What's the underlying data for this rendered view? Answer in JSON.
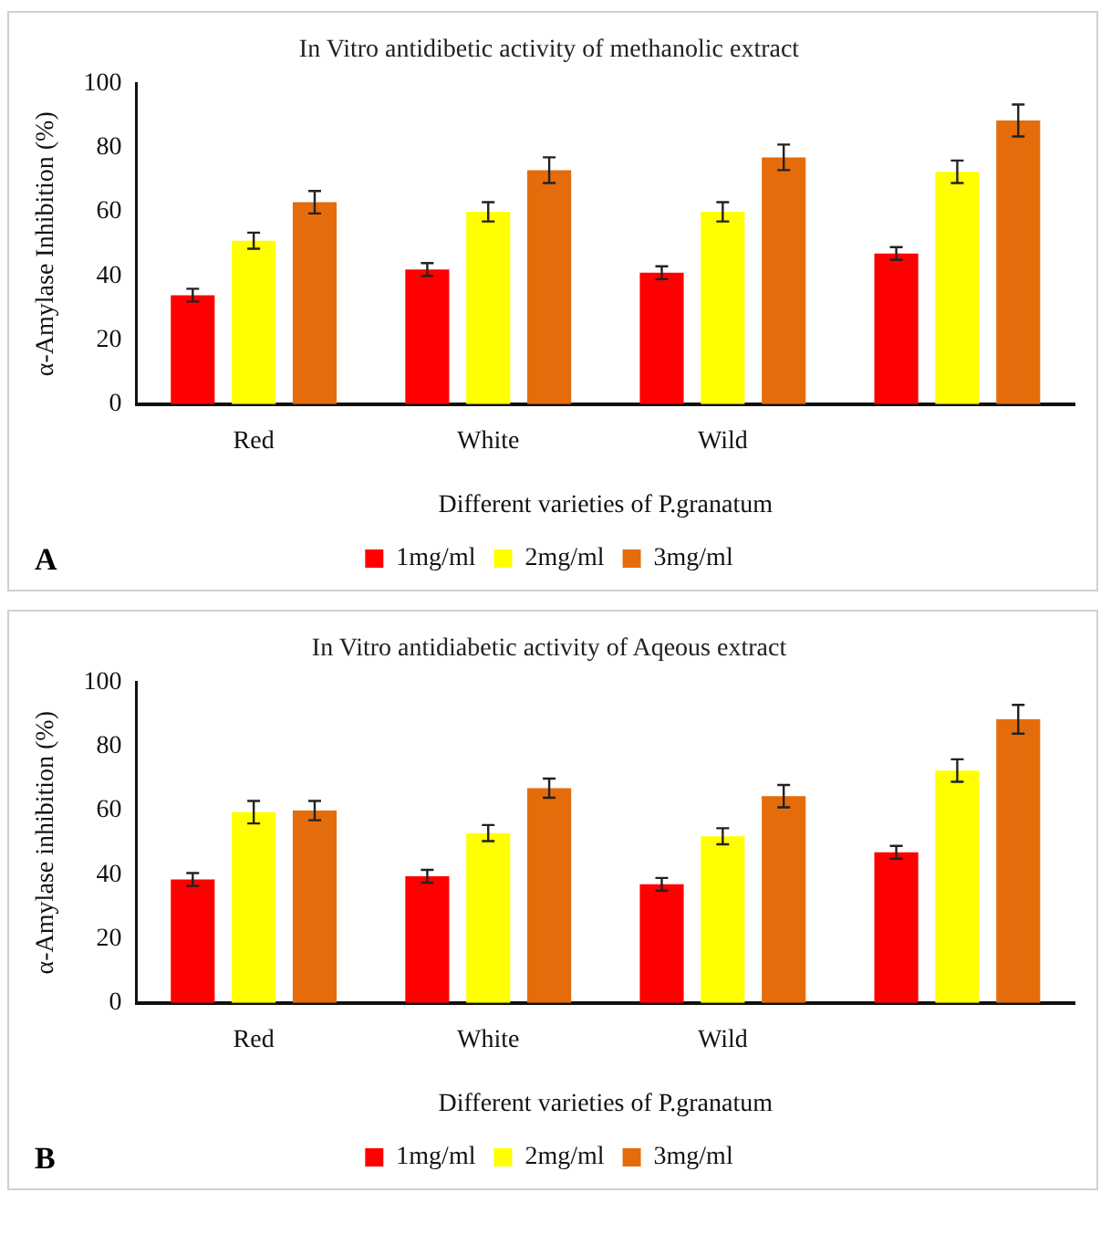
{
  "chart_data": [
    {
      "type": "bar",
      "title": "In Vitro antidibetic activity of methanolic extract",
      "xlabel": "Different varieties of P.granatum",
      "ylabel": "α-Amylase Inhibition (%)",
      "categories": [
        "Red",
        "White",
        "Wild",
        null
      ],
      "series": [
        {
          "name": "1mg/ml",
          "color": "#ff0000",
          "values": [
            34,
            42,
            41,
            47
          ],
          "errors": [
            2,
            2,
            2,
            2
          ]
        },
        {
          "name": "2mg/ml",
          "color": "#ffff00",
          "values": [
            51,
            60,
            60,
            72.5
          ],
          "errors": [
            2.5,
            3,
            3,
            3.5
          ]
        },
        {
          "name": "3mg/ml",
          "color": "#e46c0a",
          "values": [
            63,
            73,
            77,
            88.5
          ],
          "errors": [
            3.5,
            4,
            4,
            5
          ]
        }
      ],
      "ylim": [
        0,
        100
      ],
      "yticks": [
        0,
        20,
        40,
        60,
        80,
        100
      ],
      "grid": false,
      "legend": "bottom",
      "annotations": [
        "A"
      ]
    },
    {
      "type": "bar",
      "title": "In Vitro antidiabetic activity of Aqeous extract",
      "xlabel": "Different varieties of P.granatum",
      "ylabel": "α-Amylase inhibition (%)",
      "categories": [
        "Red",
        "White",
        "Wild",
        null
      ],
      "series": [
        {
          "name": "1mg/ml",
          "color": "#ff0000",
          "values": [
            38.5,
            39.5,
            37,
            47
          ],
          "errors": [
            2,
            2,
            2,
            2
          ]
        },
        {
          "name": "2mg/ml",
          "color": "#ffff00",
          "values": [
            59.5,
            53,
            52,
            72.5
          ],
          "errors": [
            3.5,
            2.5,
            2.5,
            3.5
          ]
        },
        {
          "name": "3mg/ml",
          "color": "#e46c0a",
          "values": [
            60,
            67,
            64.5,
            88.5
          ],
          "errors": [
            3,
            3,
            3.5,
            4.5
          ]
        }
      ],
      "ylim": [
        0,
        100
      ],
      "yticks": [
        0,
        20,
        40,
        60,
        80,
        100
      ],
      "grid": false,
      "legend": "bottom",
      "annotations": [
        "B"
      ]
    }
  ]
}
